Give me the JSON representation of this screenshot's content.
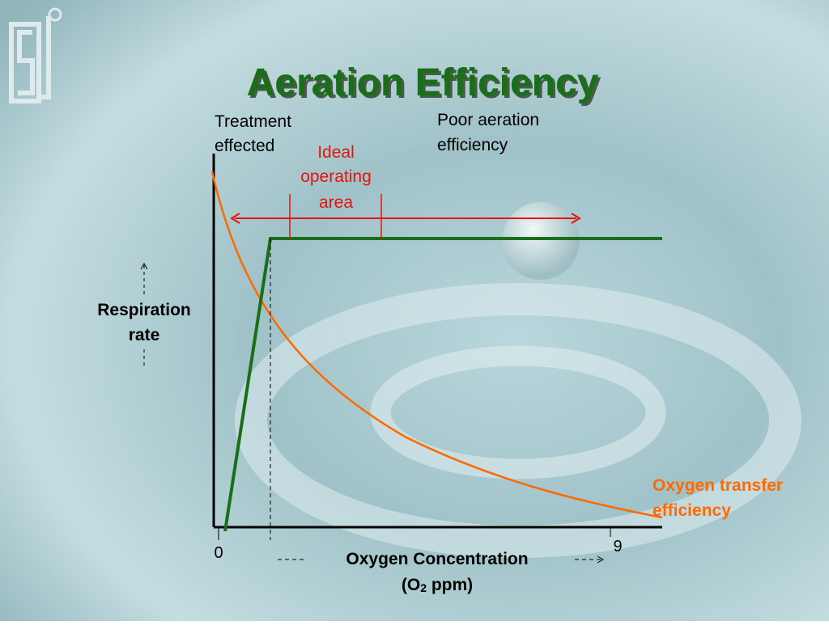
{
  "title": "Aeration Efficiency",
  "annotations": {
    "treatment": [
      "Treatment",
      "effected"
    ],
    "ideal": [
      "Ideal",
      "operating",
      "area"
    ],
    "poor": [
      "Poor aeration",
      "efficiency"
    ],
    "oxygen_transfer": [
      "Oxygen transfer",
      "efficiency"
    ]
  },
  "y_axis_label": [
    "Respiration",
    "rate"
  ],
  "x_axis_label": {
    "line1": "Oxygen Concentration",
    "open": "(O",
    "sub": "2",
    "close": " ppm)"
  },
  "x_ticks": [
    0,
    9
  ]
}
